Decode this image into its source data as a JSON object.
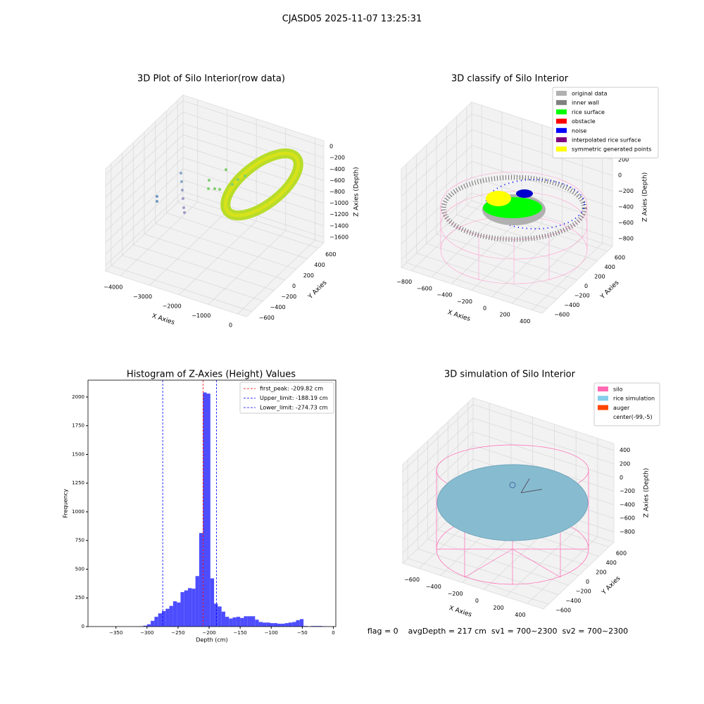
{
  "title": "CJASD05 2025-11-07 13:25:31",
  "footer_text": "flag = 0    avgDepth = 217 cm  sv1 = 700~2300  sv2 = 700~2300",
  "chart_data": [
    {
      "type": "scatter3d",
      "title": "3D Plot of Silo Interior(row data)",
      "xlabel": "X Axies",
      "ylabel": "Y Axies",
      "zlabel": "Z Axies (Depth)",
      "xlim": [
        -4500,
        300
      ],
      "ylim": [
        -700,
        700
      ],
      "zlim": [
        -1700,
        100
      ],
      "xticks": [
        {
          "value": -4000,
          "label": "−4000"
        },
        {
          "value": -3000,
          "label": "−3000"
        },
        {
          "value": -2000,
          "label": "−2000"
        },
        {
          "value": -1000,
          "label": "−1000"
        },
        0
      ],
      "yticks": [
        {
          "value": -600,
          "label": "−600"
        },
        {
          "value": -400,
          "label": "−400"
        },
        {
          "value": -200,
          "label": "−200"
        },
        0,
        200,
        400,
        600
      ],
      "zticks": [
        0,
        {
          "value": -200,
          "label": "−200"
        },
        {
          "value": -400,
          "label": "−400"
        },
        {
          "value": -600,
          "label": "−600"
        },
        {
          "value": -800,
          "label": "−800"
        },
        {
          "value": -1000,
          "label": "−1000"
        },
        {
          "value": -1200,
          "label": "−1200"
        },
        {
          "value": -1400,
          "label": "−1400"
        },
        {
          "value": -1600,
          "label": "−1600"
        }
      ]
    },
    {
      "type": "scatter3d",
      "title": "3D classify of Silo Interior",
      "xlabel": "X Axies",
      "ylabel": "Y Axies",
      "zlabel": "Z Axies (Depth)",
      "xlim": [
        -900,
        500
      ],
      "ylim": [
        -700,
        700
      ],
      "zlim": [
        -900,
        350
      ],
      "xticks": [
        {
          "value": -800,
          "label": "−800"
        },
        {
          "value": -600,
          "label": "−600"
        },
        {
          "value": -400,
          "label": "−400"
        },
        {
          "value": -200,
          "label": "−200"
        },
        0,
        200,
        400
      ],
      "yticks": [
        {
          "value": -600,
          "label": "−600"
        },
        {
          "value": -400,
          "label": "−400"
        },
        {
          "value": -200,
          "label": "−200"
        },
        0,
        200,
        400,
        600
      ],
      "zticks": [
        200,
        0,
        {
          "value": -200,
          "label": "−200"
        },
        {
          "value": -400,
          "label": "−400"
        },
        {
          "value": -600,
          "label": "−600"
        },
        {
          "value": -800,
          "label": "−800"
        }
      ],
      "legend": [
        {
          "name": "original data",
          "color": "#b0b0b0"
        },
        {
          "name": "inner wall",
          "color": "#808080"
        },
        {
          "name": "rice surface",
          "color": "#00ff00"
        },
        {
          "name": "obstacle",
          "color": "#ff0000"
        },
        {
          "name": "noise",
          "color": "#0000ff"
        },
        {
          "name": "interpolated rice surface",
          "color": "#800080"
        },
        {
          "name": "symmetric generated points",
          "color": "#ffff00"
        }
      ]
    },
    {
      "type": "histogram",
      "title": "Histogram of Z-Axies (Height) Values",
      "xlabel": "Depth (cm)",
      "ylabel": "Frequency",
      "color": "#4d4dff",
      "xlim": [
        -395,
        4
      ],
      "ylim": [
        0,
        2147
      ],
      "xticks": [
        {
          "value": -350,
          "label": "−350"
        },
        {
          "value": -300,
          "label": "−300"
        },
        {
          "value": -250,
          "label": "−250"
        },
        {
          "value": -200,
          "label": "−200"
        },
        {
          "value": -150,
          "label": "−150"
        },
        {
          "value": -100,
          "label": "−100"
        },
        {
          "value": -50,
          "label": "−50"
        },
        0
      ],
      "yticks": [
        0,
        250,
        500,
        750,
        1000,
        1250,
        1500,
        1750,
        2000
      ],
      "bins": [
        -312,
        -306,
        -300,
        -294,
        -288,
        -282,
        -276,
        -270,
        -264,
        -258,
        -252,
        -246,
        -240,
        -234,
        -228,
        -222,
        -216,
        -210,
        -204,
        -198,
        -192,
        -186,
        -180,
        -174,
        -168,
        -162,
        -156,
        -150,
        -144,
        -138,
        -132,
        -126,
        -120,
        -114,
        -108,
        -102,
        -96,
        -90,
        -84,
        -78,
        -72,
        -66,
        -60,
        -54,
        -48,
        -42,
        -36,
        -30,
        -24,
        -18,
        -12
      ],
      "values": [
        3,
        8,
        20,
        50,
        85,
        115,
        135,
        155,
        180,
        220,
        210,
        300,
        315,
        335,
        330,
        440,
        815,
        2040,
        2030,
        420,
        200,
        175,
        130,
        85,
        70,
        80,
        85,
        75,
        90,
        90,
        90,
        60,
        40,
        35,
        35,
        30,
        30,
        25,
        25,
        30,
        35,
        40,
        55,
        65,
        5,
        0,
        5,
        5,
        5,
        3
      ],
      "vlines": [
        {
          "value": -209.82,
          "label": "first_peak: -209.82 cm",
          "color": "#ff0000"
        },
        {
          "value": -188.19,
          "label": "Upper_limit: -188.19 cm",
          "color": "#0000ff"
        },
        {
          "value": -274.73,
          "label": "Lower_limit: -274.73 cm",
          "color": "#0000ff"
        }
      ]
    },
    {
      "type": "scatter3d",
      "title": "3D simulation of Silo Interior",
      "xlabel": "X Axies",
      "ylabel": "Y Axies",
      "zlabel": "Z Axies (Depth)",
      "xlim": [
        -750,
        550
      ],
      "ylim": [
        -700,
        700
      ],
      "zlim": [
        -950,
        500
      ],
      "xticks": [
        {
          "value": -600,
          "label": "−600"
        },
        {
          "value": -400,
          "label": "−400"
        },
        {
          "value": -200,
          "label": "−200"
        },
        0,
        200,
        400
      ],
      "yticks": [
        {
          "value": -600,
          "label": "−600"
        },
        {
          "value": -400,
          "label": "−400"
        },
        {
          "value": -200,
          "label": "−200"
        },
        0,
        200,
        400,
        600
      ],
      "zticks": [
        400,
        200,
        0,
        {
          "value": -200,
          "label": "−200"
        },
        {
          "value": -400,
          "label": "−400"
        },
        {
          "value": -600,
          "label": "−600"
        },
        {
          "value": -800,
          "label": "−800"
        }
      ],
      "legend": [
        {
          "name": "silo",
          "color": "#ff69b4"
        },
        {
          "name": "rice simulation",
          "color": "#87ceeb"
        },
        {
          "name": "auger",
          "color": "#ff4500"
        },
        {
          "name": "center(-99,-5)",
          "color": "#ffffff"
        }
      ]
    }
  ]
}
